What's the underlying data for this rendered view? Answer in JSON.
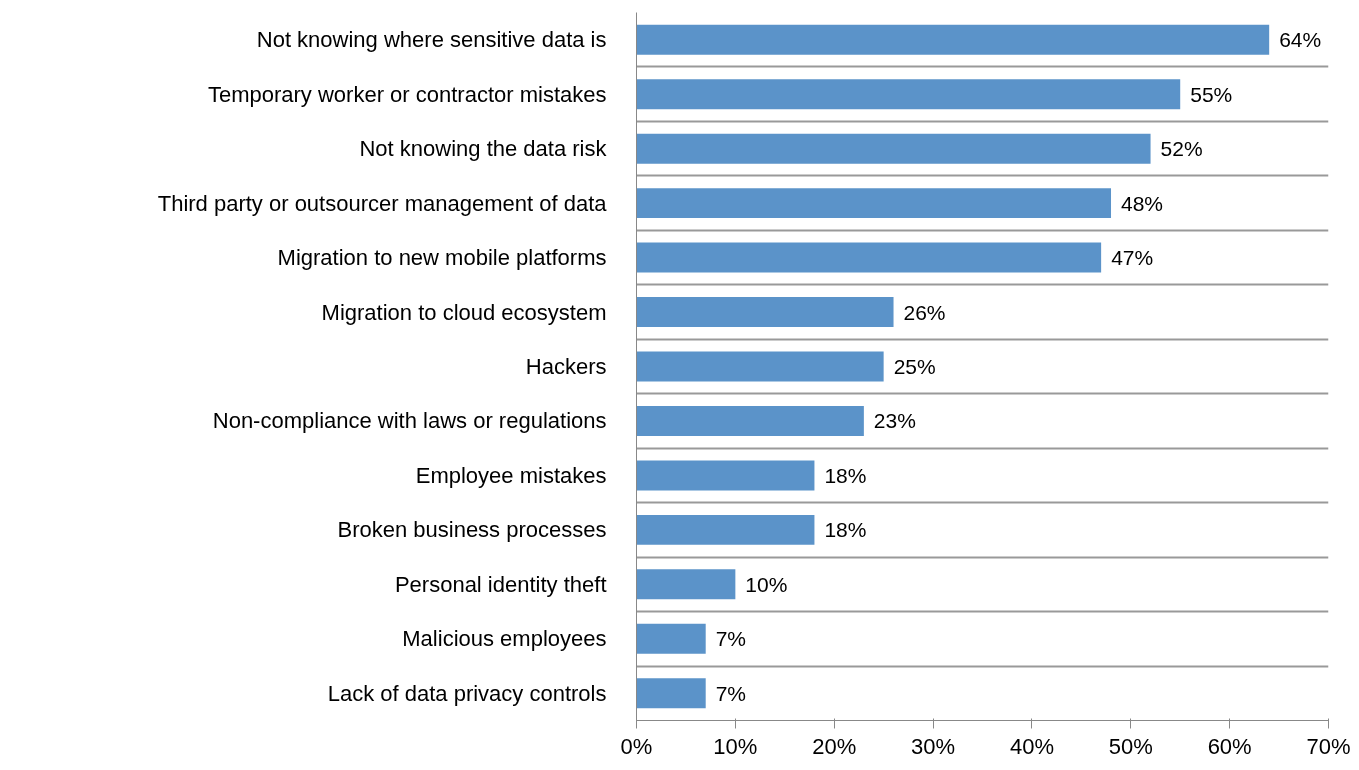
{
  "chart_data": {
    "type": "bar",
    "orientation": "horizontal",
    "categories": [
      "Not knowing where sensitive data is",
      "Temporary worker or contractor mistakes",
      "Not knowing the data risk",
      "Third party or outsourcer management of data",
      "Migration to new mobile platforms",
      "Migration to cloud ecosystem",
      "Hackers",
      "Non-compliance with laws or regulations",
      "Employee mistakes",
      "Broken business processes",
      "Personal identity theft",
      "Malicious employees",
      "Lack of data privacy controls"
    ],
    "values": [
      64,
      55,
      52,
      48,
      47,
      26,
      25,
      23,
      18,
      18,
      10,
      7,
      7
    ],
    "value_labels": [
      "64%",
      "55%",
      "52%",
      "48%",
      "47%",
      "26%",
      "25%",
      "23%",
      "18%",
      "18%",
      "10%",
      "7%",
      "7%"
    ],
    "color": "#5b93c9",
    "xlim": [
      0,
      70
    ],
    "xticks": [
      {
        "value": 0,
        "label": "0%"
      },
      {
        "value": 10,
        "label": "10%"
      },
      {
        "value": 20,
        "label": "20%"
      },
      {
        "value": 30,
        "label": "30%"
      },
      {
        "value": 40,
        "label": "40%"
      },
      {
        "value": 50,
        "label": "50%"
      },
      {
        "value": 60,
        "label": "60%"
      },
      {
        "value": 70,
        "label": "70%"
      }
    ],
    "grid": "y"
  }
}
